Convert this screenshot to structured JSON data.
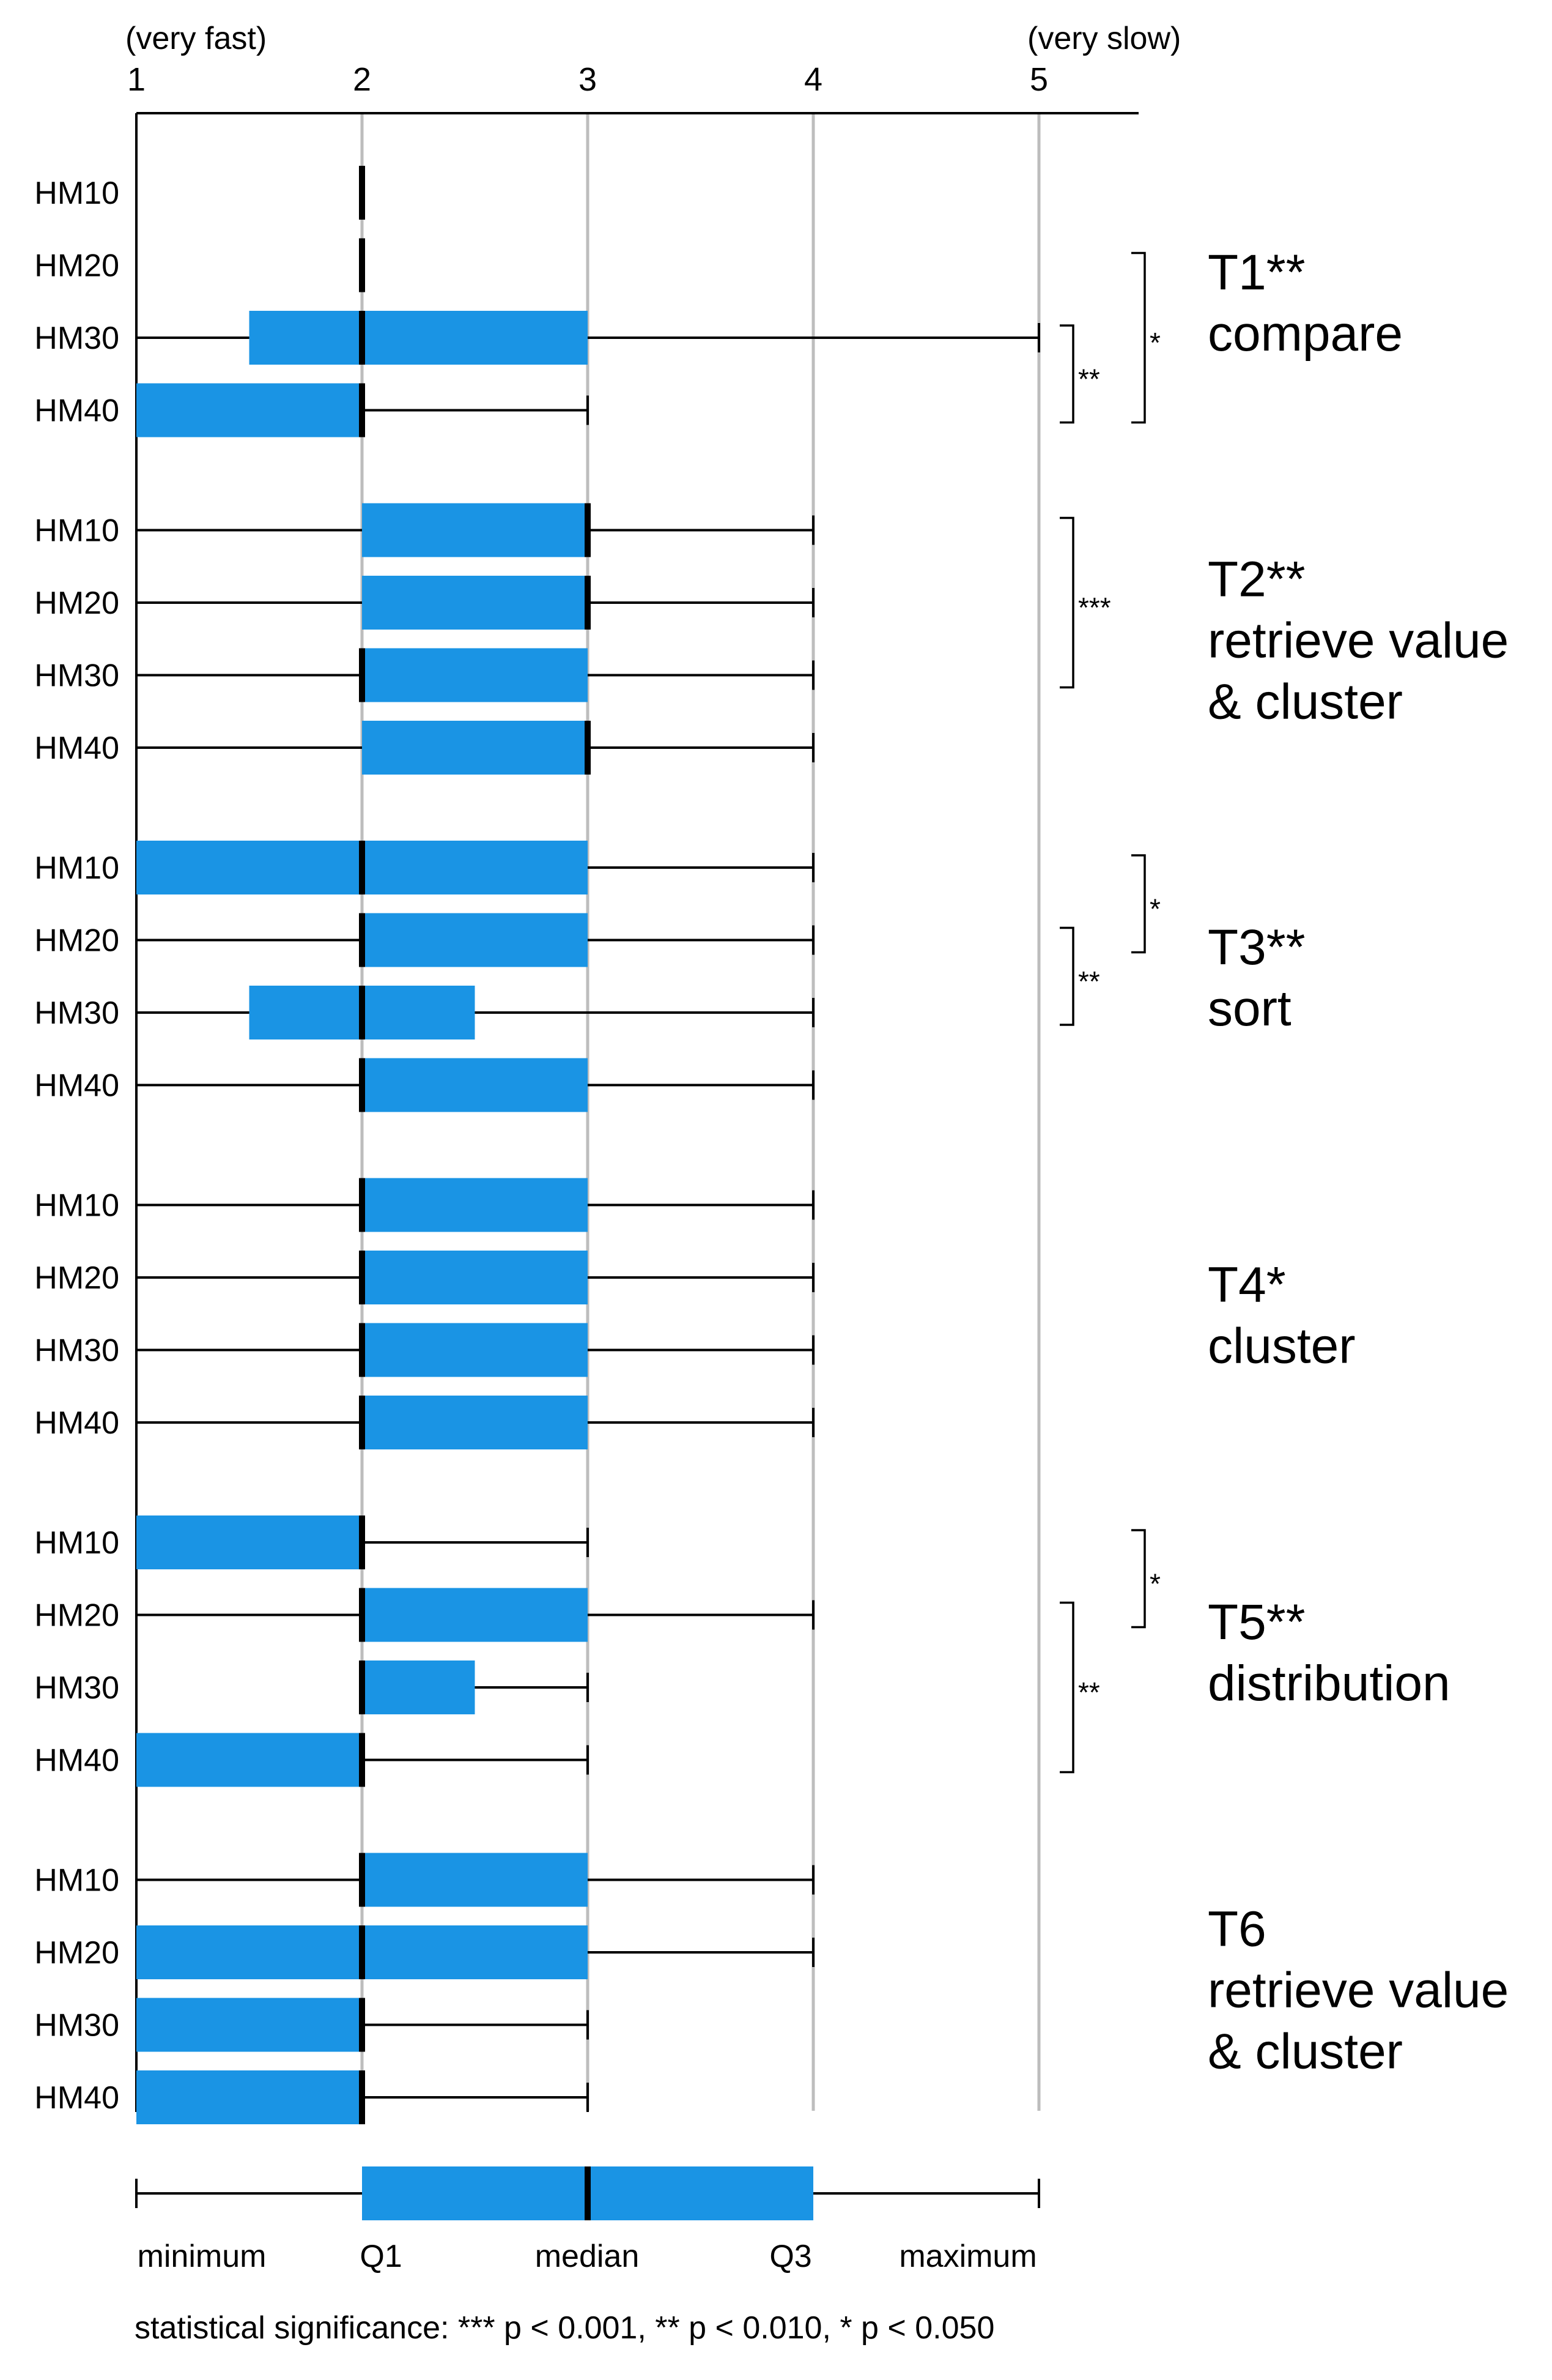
{
  "chart_data": {
    "type": "boxplot",
    "axis": {
      "ticks": [
        "1",
        "2",
        "3",
        "4",
        "5"
      ],
      "tick_values": [
        1,
        2,
        3,
        4,
        5
      ],
      "min_label": "(very fast)",
      "max_label": "(very slow)",
      "xlim": [
        1,
        5
      ],
      "gridlines": true
    },
    "box_color": "#1a94e4",
    "groups": [
      {
        "title": "T1**",
        "subtitle": [
          "compare"
        ],
        "rows": [
          {
            "label": "HM10",
            "min": 2,
            "q1": 2,
            "median": 2,
            "q3": 2,
            "max": 2
          },
          {
            "label": "HM20",
            "min": 2,
            "q1": 2,
            "median": 2,
            "q3": 2,
            "max": 2
          },
          {
            "label": "HM30",
            "min": 1,
            "q1": 1.5,
            "median": 2,
            "q3": 3,
            "max": 5
          },
          {
            "label": "HM40",
            "min": 1,
            "q1": 1,
            "median": 2,
            "q3": 2,
            "max": 3
          }
        ],
        "brackets": [
          {
            "from": 2,
            "to": 3,
            "label": "**",
            "level": 0
          },
          {
            "from": 1,
            "to": 3,
            "label": "*",
            "level": 1
          }
        ]
      },
      {
        "title": "T2**",
        "subtitle": [
          "retrieve value",
          "& cluster"
        ],
        "rows": [
          {
            "label": "HM10",
            "min": 1,
            "q1": 2,
            "median": 3,
            "q3": 3,
            "max": 4
          },
          {
            "label": "HM20",
            "min": 1,
            "q1": 2,
            "median": 3,
            "q3": 3,
            "max": 4
          },
          {
            "label": "HM30",
            "min": 1,
            "q1": 2,
            "median": 2,
            "q3": 3,
            "max": 4
          },
          {
            "label": "HM40",
            "min": 1,
            "q1": 2,
            "median": 3,
            "q3": 3,
            "max": 4
          }
        ],
        "brackets": [
          {
            "from": 0,
            "to": 2,
            "label": "***",
            "level": 0
          }
        ]
      },
      {
        "title": "T3**",
        "subtitle": [
          "sort"
        ],
        "rows": [
          {
            "label": "HM10",
            "min": 1,
            "q1": 1,
            "median": 2,
            "q3": 3,
            "max": 4
          },
          {
            "label": "HM20",
            "min": 1,
            "q1": 2,
            "median": 2,
            "q3": 3,
            "max": 4
          },
          {
            "label": "HM30",
            "min": 1,
            "q1": 1.5,
            "median": 2,
            "q3": 2.5,
            "max": 4
          },
          {
            "label": "HM40",
            "min": 1,
            "q1": 2,
            "median": 2,
            "q3": 3,
            "max": 4
          }
        ],
        "brackets": [
          {
            "from": 0,
            "to": 1,
            "label": "*",
            "level": 1
          },
          {
            "from": 1,
            "to": 2,
            "label": "**",
            "level": 0
          }
        ]
      },
      {
        "title": "T4*",
        "subtitle": [
          "cluster"
        ],
        "rows": [
          {
            "label": "HM10",
            "min": 1,
            "q1": 2,
            "median": 2,
            "q3": 3,
            "max": 4
          },
          {
            "label": "HM20",
            "min": 1,
            "q1": 2,
            "median": 2,
            "q3": 3,
            "max": 4
          },
          {
            "label": "HM30",
            "min": 1,
            "q1": 2,
            "median": 2,
            "q3": 3,
            "max": 4
          },
          {
            "label": "HM40",
            "min": 1,
            "q1": 2,
            "median": 2,
            "q3": 3,
            "max": 4
          }
        ],
        "brackets": []
      },
      {
        "title": "T5**",
        "subtitle": [
          "distribution"
        ],
        "rows": [
          {
            "label": "HM10",
            "min": 1,
            "q1": 1,
            "median": 2,
            "q3": 2,
            "max": 3
          },
          {
            "label": "HM20",
            "min": 1,
            "q1": 2,
            "median": 2,
            "q3": 3,
            "max": 4
          },
          {
            "label": "HM30",
            "min": 2,
            "q1": 2,
            "median": 2,
            "q3": 2.5,
            "max": 3
          },
          {
            "label": "HM40",
            "min": 1,
            "q1": 1,
            "median": 2,
            "q3": 2,
            "max": 3
          }
        ],
        "brackets": [
          {
            "from": 0,
            "to": 1,
            "label": "*",
            "level": 1
          },
          {
            "from": 1,
            "to": 3,
            "label": "**",
            "level": 0
          }
        ]
      },
      {
        "title": "T6",
        "subtitle": [
          "retrieve value",
          "& cluster"
        ],
        "rows": [
          {
            "label": "HM10",
            "min": 1,
            "q1": 2,
            "median": 2,
            "q3": 3,
            "max": 4
          },
          {
            "label": "HM20",
            "min": 1,
            "q1": 1,
            "median": 2,
            "q3": 3,
            "max": 4
          },
          {
            "label": "HM30",
            "min": 1,
            "q1": 1,
            "median": 2,
            "q3": 2,
            "max": 3
          },
          {
            "label": "HM40",
            "min": 1,
            "q1": 1,
            "median": 2,
            "q3": 2,
            "max": 3
          }
        ],
        "brackets": []
      }
    ],
    "legend": {
      "example": {
        "min": 1,
        "q1": 2,
        "median": 3,
        "q3": 4,
        "max": 5
      },
      "labels": [
        "minimum",
        "Q1",
        "median",
        "Q3",
        "maximum"
      ]
    },
    "footnote": "statistical significance: *** p < 0.001, ** p < 0.010, * p < 0.050"
  }
}
